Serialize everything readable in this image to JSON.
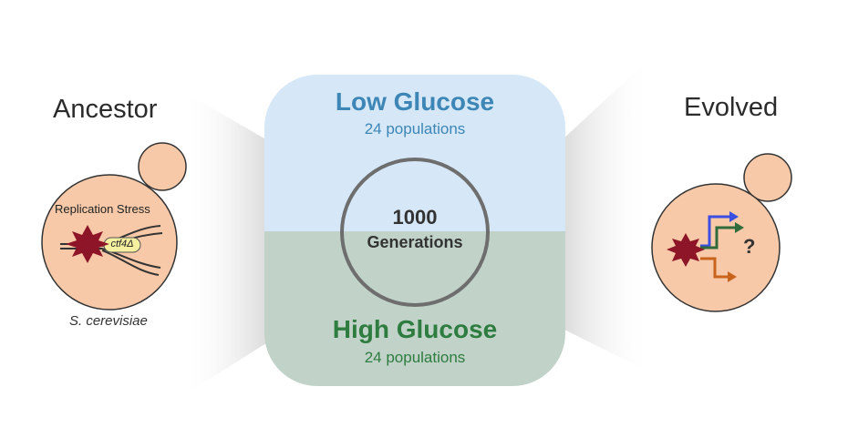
{
  "ancestor": {
    "title": "Ancestor",
    "stress_label": "Replication Stress",
    "gene_label": "ctf4Δ",
    "species": "S. cerevisiae"
  },
  "evolved": {
    "title": "Evolved",
    "unknown_mark": "?"
  },
  "conditions": {
    "low": {
      "title": "Low Glucose",
      "populations": "24 populations"
    },
    "high": {
      "title": "High Glucose",
      "populations": "24 populations"
    }
  },
  "generations": {
    "count": "1000",
    "label": "Generations"
  },
  "colors": {
    "cell_fill": "#f7c9a8",
    "low_glucose_bg": "#d6e8f7",
    "high_glucose_bg": "#c1d3c9",
    "low_glucose_text": "#3d86b6",
    "high_glucose_text": "#2e7c3f",
    "damage_star": "#8e1528",
    "arrow_blue": "#3a4fe0",
    "arrow_green": "#2f6b3c",
    "arrow_orange": "#c8641e"
  }
}
